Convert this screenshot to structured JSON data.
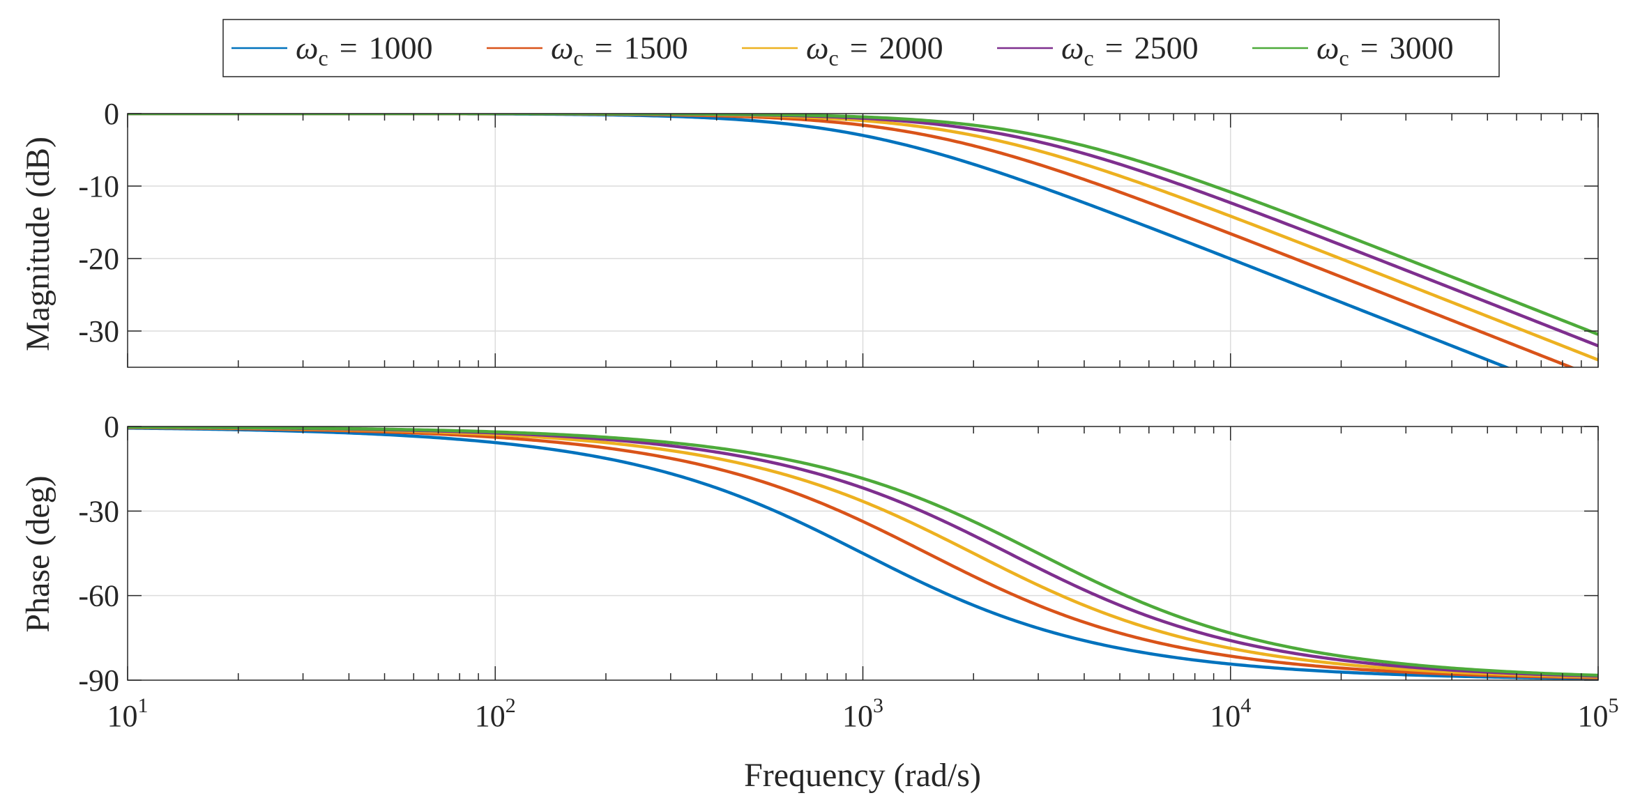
{
  "chart_data": [
    {
      "type": "line",
      "panel": "magnitude",
      "ylabel": "Magnitude (dB)",
      "xlabel": "",
      "xscale": "log",
      "xlim": [
        10,
        100000
      ],
      "ylim": [
        -35,
        0
      ],
      "yticks": [
        0,
        -10,
        -20,
        -30
      ],
      "ytick_labels": [
        "0",
        "-10",
        "-20",
        "-30"
      ],
      "grid": true,
      "series": [
        {
          "name": "ωc = 1000",
          "color": "#0072BD",
          "wc": 1000
        },
        {
          "name": "ωc = 1500",
          "color": "#D95319",
          "wc": 1500
        },
        {
          "name": "ωc = 2000",
          "color": "#EDB120",
          "wc": 2000
        },
        {
          "name": "ωc = 2500",
          "color": "#7E2F8E",
          "wc": 2500
        },
        {
          "name": "ωc = 3000",
          "color": "#4DAA3A",
          "wc": 3000
        }
      ]
    },
    {
      "type": "line",
      "panel": "phase",
      "ylabel": "Phase (deg)",
      "xlabel": "Frequency (rad/s)",
      "xscale": "log",
      "xlim": [
        10,
        100000
      ],
      "ylim": [
        -90,
        0
      ],
      "yticks": [
        0,
        -30,
        -60,
        -90
      ],
      "ytick_labels": [
        "0",
        "-30",
        "-60",
        "-90"
      ],
      "xtick_values": [
        10,
        100,
        1000,
        10000,
        100000
      ],
      "xtick_base": "10",
      "xtick_exponents": [
        "1",
        "2",
        "3",
        "4",
        "5"
      ],
      "grid": true,
      "series": [
        {
          "name": "ωc = 1000",
          "color": "#0072BD",
          "wc": 1000
        },
        {
          "name": "ωc = 1500",
          "color": "#D95319",
          "wc": 1500
        },
        {
          "name": "ωc = 2000",
          "color": "#EDB120",
          "wc": 2000
        },
        {
          "name": "ωc = 2500",
          "color": "#7E2F8E",
          "wc": 2500
        },
        {
          "name": "ωc = 3000",
          "color": "#4DAA3A",
          "wc": 3000
        }
      ]
    }
  ],
  "legend": {
    "placement": "top-center",
    "entries": [
      {
        "symbol": "ω",
        "subscript": "c",
        "eq": "=",
        "value": "1000",
        "color": "#0072BD"
      },
      {
        "symbol": "ω",
        "subscript": "c",
        "eq": "=",
        "value": "1500",
        "color": "#D95319"
      },
      {
        "symbol": "ω",
        "subscript": "c",
        "eq": "=",
        "value": "2000",
        "color": "#EDB120"
      },
      {
        "symbol": "ω",
        "subscript": "c",
        "eq": "=",
        "value": "2500",
        "color": "#7E2F8E"
      },
      {
        "symbol": "ω",
        "subscript": "c",
        "eq": "=",
        "value": "3000",
        "color": "#4DAA3A"
      }
    ]
  }
}
